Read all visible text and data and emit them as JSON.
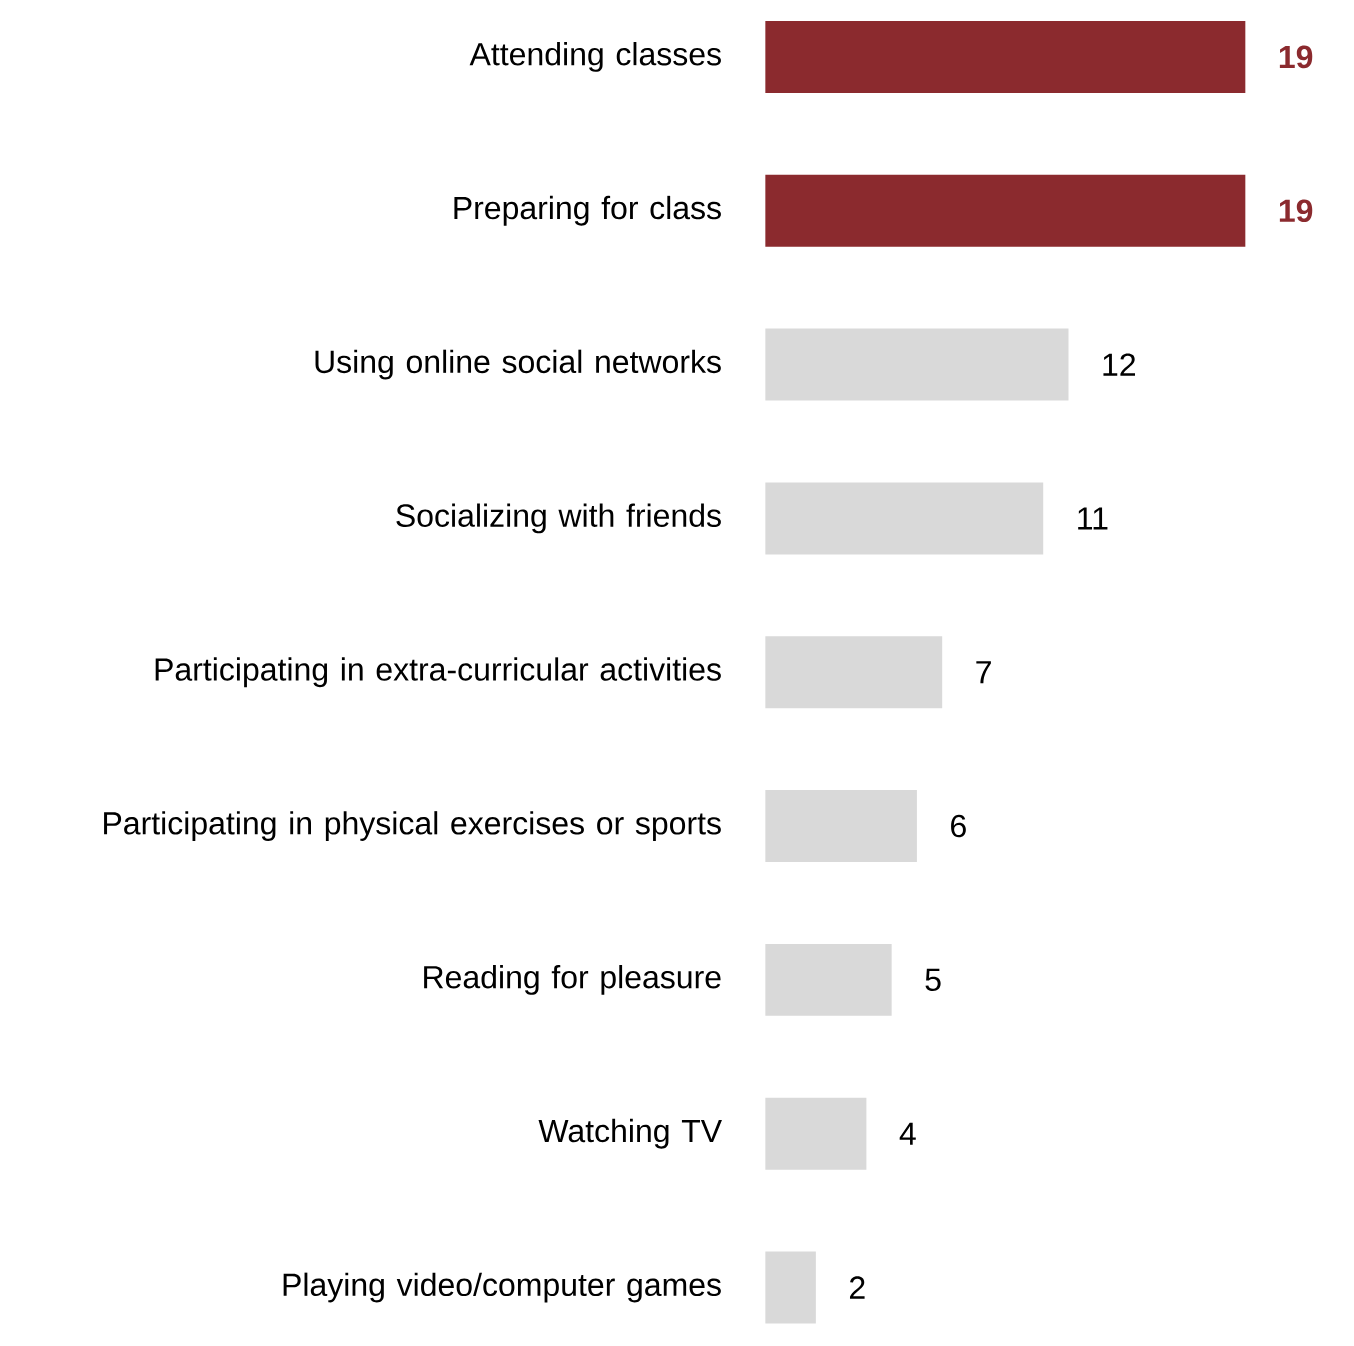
{
  "chart_data": {
    "type": "bar",
    "orientation": "horizontal",
    "data_labels": true,
    "categories": [
      "Attending classes",
      "Preparing for class",
      "Using online social networks",
      "Socializing with friends",
      "Participating in extra-curricular activities",
      "Participating in physical exercises or sports",
      "Reading for pleasure",
      "Watching TV",
      "Playing video/computer games"
    ],
    "values": [
      19,
      19,
      12,
      11,
      7,
      6,
      5,
      4,
      2
    ],
    "colors": [
      "#8b2a2e",
      "#8b2a2e",
      "#d9d9d9",
      "#d9d9d9",
      "#d9d9d9",
      "#d9d9d9",
      "#d9d9d9",
      "#d9d9d9",
      "#d9d9d9"
    ]
  }
}
